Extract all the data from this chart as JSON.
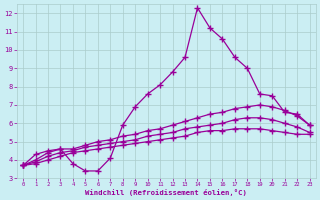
{
  "xlabel": "Windchill (Refroidissement éolien,°C)",
  "ylabel": "",
  "xlim": [
    -0.5,
    23.5
  ],
  "ylim": [
    3,
    12.5
  ],
  "background_color": "#cbeef3",
  "line_color": "#990099",
  "grid_color": "#aacccc",
  "x_ticks": [
    0,
    1,
    2,
    3,
    4,
    5,
    6,
    7,
    8,
    9,
    10,
    11,
    12,
    13,
    14,
    15,
    16,
    17,
    18,
    19,
    20,
    21,
    22,
    23
  ],
  "y_ticks": [
    3,
    4,
    5,
    6,
    7,
    8,
    9,
    10,
    11,
    12
  ],
  "series1_x": [
    0,
    1,
    2,
    3,
    4,
    5,
    6,
    7,
    8,
    9,
    10,
    11,
    12,
    13,
    14,
    15,
    16,
    17,
    18,
    19,
    20,
    21,
    22,
    23
  ],
  "series1_y": [
    3.7,
    4.3,
    4.5,
    4.6,
    3.8,
    3.4,
    3.4,
    4.1,
    5.9,
    6.9,
    7.6,
    8.1,
    8.8,
    9.6,
    12.3,
    11.2,
    10.6,
    9.6,
    9.0,
    7.6,
    7.5,
    6.6,
    6.5,
    5.9
  ],
  "series2_x": [
    0,
    1,
    2,
    3,
    4,
    5,
    6,
    7,
    8,
    9,
    10,
    11,
    12,
    13,
    14,
    15,
    16,
    17,
    18,
    19,
    20,
    21,
    22,
    23
  ],
  "series2_y": [
    3.7,
    4.0,
    4.4,
    4.6,
    4.6,
    4.8,
    5.0,
    5.1,
    5.3,
    5.4,
    5.6,
    5.7,
    5.9,
    6.1,
    6.3,
    6.5,
    6.6,
    6.8,
    6.9,
    7.0,
    6.9,
    6.7,
    6.4,
    5.9
  ],
  "series3_x": [
    0,
    1,
    2,
    3,
    4,
    5,
    6,
    7,
    8,
    9,
    10,
    11,
    12,
    13,
    14,
    15,
    16,
    17,
    18,
    19,
    20,
    21,
    22,
    23
  ],
  "series3_y": [
    3.7,
    3.9,
    4.2,
    4.4,
    4.5,
    4.7,
    4.8,
    4.9,
    5.0,
    5.1,
    5.3,
    5.4,
    5.5,
    5.7,
    5.8,
    5.9,
    6.0,
    6.2,
    6.3,
    6.3,
    6.2,
    6.0,
    5.8,
    5.5
  ],
  "series4_x": [
    0,
    1,
    2,
    3,
    4,
    5,
    6,
    7,
    8,
    9,
    10,
    11,
    12,
    13,
    14,
    15,
    16,
    17,
    18,
    19,
    20,
    21,
    22,
    23
  ],
  "series4_y": [
    3.7,
    3.8,
    4.0,
    4.2,
    4.4,
    4.5,
    4.6,
    4.7,
    4.8,
    4.9,
    5.0,
    5.1,
    5.2,
    5.3,
    5.5,
    5.6,
    5.6,
    5.7,
    5.7,
    5.7,
    5.6,
    5.5,
    5.4,
    5.4
  ]
}
